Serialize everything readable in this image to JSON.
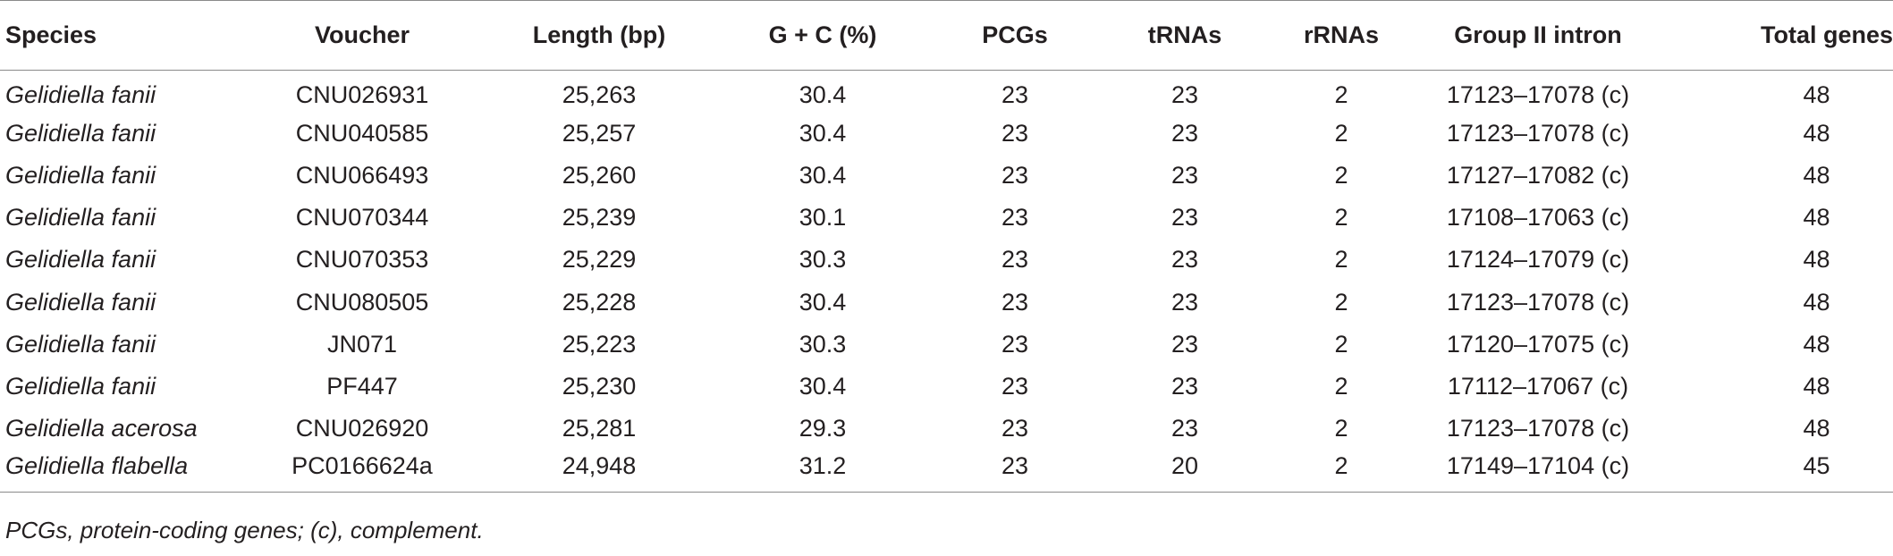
{
  "table": {
    "headers": [
      "Species",
      "Voucher",
      "Length (bp)",
      "G + C (%)",
      "PCGs",
      "tRNAs",
      "rRNAs",
      "Group II intron",
      "Total genes"
    ],
    "rows": [
      [
        "Gelidiella fanii",
        "CNU026931",
        "25,263",
        "30.4",
        "23",
        "23",
        "2",
        "17123–17078 (c)",
        "48"
      ],
      [
        "Gelidiella fanii",
        "CNU040585",
        "25,257",
        "30.4",
        "23",
        "23",
        "2",
        "17123–17078 (c)",
        "48"
      ],
      [
        "Gelidiella fanii",
        "CNU066493",
        "25,260",
        "30.4",
        "23",
        "23",
        "2",
        "17127–17082 (c)",
        "48"
      ],
      [
        "Gelidiella fanii",
        "CNU070344",
        "25,239",
        "30.1",
        "23",
        "23",
        "2",
        "17108–17063 (c)",
        "48"
      ],
      [
        "Gelidiella fanii",
        "CNU070353",
        "25,229",
        "30.3",
        "23",
        "23",
        "2",
        "17124–17079 (c)",
        "48"
      ],
      [
        "Gelidiella fanii",
        "CNU080505",
        "25,228",
        "30.4",
        "23",
        "23",
        "2",
        "17123–17078 (c)",
        "48"
      ],
      [
        "Gelidiella fanii",
        "JN071",
        "25,223",
        "30.3",
        "23",
        "23",
        "2",
        "17120–17075 (c)",
        "48"
      ],
      [
        "Gelidiella fanii",
        "PF447",
        "25,230",
        "30.4",
        "23",
        "23",
        "2",
        "17112–17067 (c)",
        "48"
      ],
      [
        "Gelidiella acerosa",
        "CNU026920",
        "25,281",
        "29.3",
        "23",
        "23",
        "2",
        "17123–17078 (c)",
        "48"
      ],
      [
        "Gelidiella flabella",
        "PC0166624a",
        "24,948",
        "31.2",
        "23",
        "20",
        "2",
        "17149–17104 (c)",
        "45"
      ]
    ],
    "footnote": "PCGs, protein-coding genes; (c), complement."
  }
}
